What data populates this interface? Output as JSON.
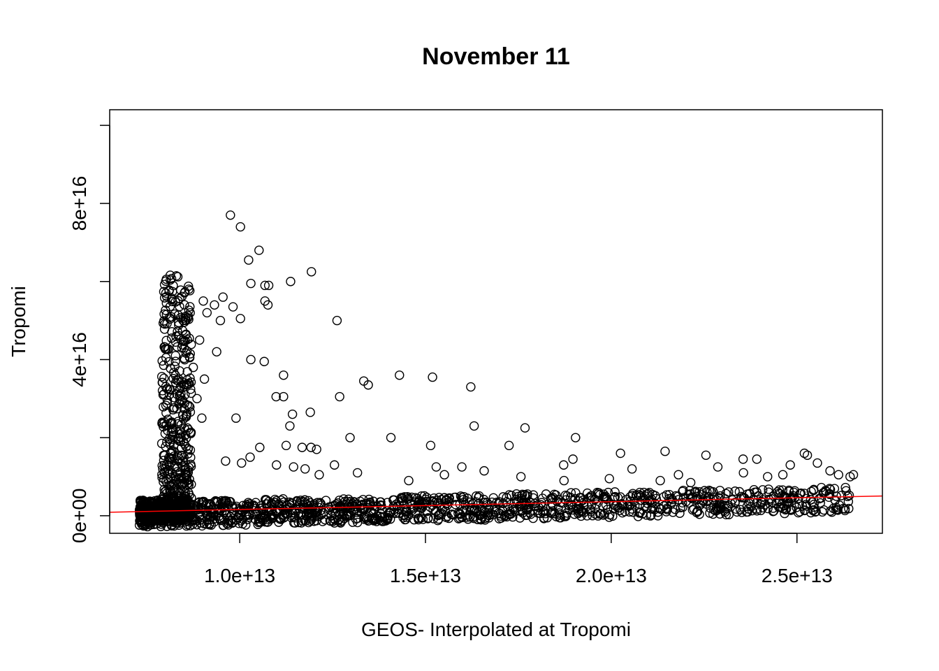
{
  "chart_data": {
    "type": "scatter",
    "title": "November 11",
    "xlabel": "GEOS- Interpolated at Tropomi",
    "ylabel": "Tropomi",
    "xlim": [
      6500000000000.0,
      27300000000000.0
    ],
    "ylim": [
      -4500000000000000.0,
      1.04e+17
    ],
    "x_ticks": [
      {
        "value": 10000000000000.0,
        "label": "1.0e+13"
      },
      {
        "value": 15000000000000.0,
        "label": "1.5e+13"
      },
      {
        "value": 20000000000000.0,
        "label": "2.0e+13"
      },
      {
        "value": 25000000000000.0,
        "label": "2.5e+13"
      }
    ],
    "y_ticks": [
      {
        "value": 0,
        "label": "0e+00"
      },
      {
        "value": 2e+16,
        "label": ""
      },
      {
        "value": 4e+16,
        "label": "4e+16"
      },
      {
        "value": 6e+16,
        "label": ""
      },
      {
        "value": 8e+16,
        "label": "8e+16"
      },
      {
        "value": 1e+17,
        "label": ""
      }
    ],
    "grid": false,
    "legend": "none",
    "marker": "open-circle",
    "point_color": "#000000",
    "fit_line": {
      "color": "#ff0000",
      "intercept": -400000000000000.0,
      "slope": 200.0
    },
    "series": [
      {
        "x": [
          9750000000000.0,
          10020000000000.0,
          10520000000000.0,
          10240000000000.0,
          11930000000000.0,
          10300000000000.0,
          10680000000000.0,
          10780000000000.0,
          11370000000000.0,
          10680000000000.0,
          10760000000000.0,
          9820000000000.0,
          12620000000000.0,
          10020000000000.0,
          10300000000000.0,
          10660000000000.0,
          11180000000000.0,
          13340000000000.0,
          13460000000000.0,
          14300000000000.0,
          15190000000000.0,
          16220000000000.0,
          10980000000000.0,
          12690000000000.0,
          11180000000000.0,
          11350000000000.0,
          9900000000000.0,
          11900000000000.0,
          11420000000000.0,
          16310000000000.0,
          17680000000000.0,
          19040000000000.0,
          14070000000000.0,
          12970000000000.0,
          17250000000000.0,
          11250000000000.0,
          11680000000000.0,
          11920000000000.0,
          12070000000000.0,
          10540000000000.0,
          15140000000000.0,
          18970000000000.0,
          20250000000000.0,
          21450000000000.0,
          22550000000000.0,
          23550000000000.0,
          23920000000000.0,
          25280000000000.0,
          25200000000000.0,
          24820000000000.0,
          25890000000000.0,
          26520000000000.0,
          26120000000000.0,
          26430000000000.0,
          12550000000000.0,
          9020000000000.0,
          9320000000000.0,
          9550000000000.0,
          9120000000000.0,
          9480000000000.0,
          9380000000000.0,
          8920000000000.0,
          9050000000000.0,
          8750000000000.0,
          8850000000000.0,
          8980000000000.0,
          9620000000000.0,
          10050000000000.0,
          10280000000000.0,
          10990000000000.0,
          11450000000000.0,
          12140000000000.0,
          14550000000000.0,
          15510000000000.0,
          15980000000000.0,
          17570000000000.0,
          18730000000000.0,
          19950000000000.0,
          20560000000000.0,
          21810000000000.0,
          22870000000000.0,
          24210000000000.0,
          25550000000000.0,
          24620000000000.0,
          23560000000000.0,
          22140000000000.0,
          21320000000000.0,
          18720000000000.0,
          16580000000000.0,
          15290000000000.0,
          13170000000000.0,
          11760000000000.0
        ],
        "y": [
          7.7e+16,
          7.4e+16,
          6.8e+16,
          6.55e+16,
          6.25e+16,
          5.95e+16,
          5.9e+16,
          5.9e+16,
          6e+16,
          5.5e+16,
          5.4e+16,
          5.35e+16,
          5e+16,
          5.05e+16,
          4e+16,
          3.95e+16,
          3.6e+16,
          3.45e+16,
          3.35e+16,
          3.6e+16,
          3.55e+16,
          3.3e+16,
          3.05e+16,
          3.05e+16,
          3.05e+16,
          2.3e+16,
          2.5e+16,
          2.65e+16,
          2.6e+16,
          2.3e+16,
          2.25e+16,
          2e+16,
          2e+16,
          2e+16,
          1.8e+16,
          1.8e+16,
          1.75e+16,
          1.75e+16,
          1.7e+16,
          1.75e+16,
          1.8e+16,
          1.45e+16,
          1.6e+16,
          1.65e+16,
          1.55e+16,
          1.45e+16,
          1.45e+16,
          1.55e+16,
          1.6e+16,
          1.3e+16,
          1.15e+16,
          1.05e+16,
          1.05e+16,
          1e+16,
          1.3e+16,
          5.5e+16,
          5.4e+16,
          5.6e+16,
          5.2e+16,
          5e+16,
          4.2e+16,
          4.5e+16,
          3.5e+16,
          3.8e+16,
          3e+16,
          2.5e+16,
          1.4e+16,
          1.35e+16,
          1.5e+16,
          1.3e+16,
          1.25e+16,
          1.05e+16,
          9000000000000000.0,
          1.05e+16,
          1.25e+16,
          1e+16,
          9000000000000000.0,
          9500000000000000.0,
          1.2e+16,
          1.05e+16,
          1.25e+16,
          1e+16,
          1.35e+16,
          1.05e+16,
          1.1e+16,
          8500000000000000.0,
          9000000000000000.0,
          1.3e+16,
          1.15e+16,
          1.25e+16,
          1.1e+16,
          1.2e+16
        ]
      }
    ]
  }
}
